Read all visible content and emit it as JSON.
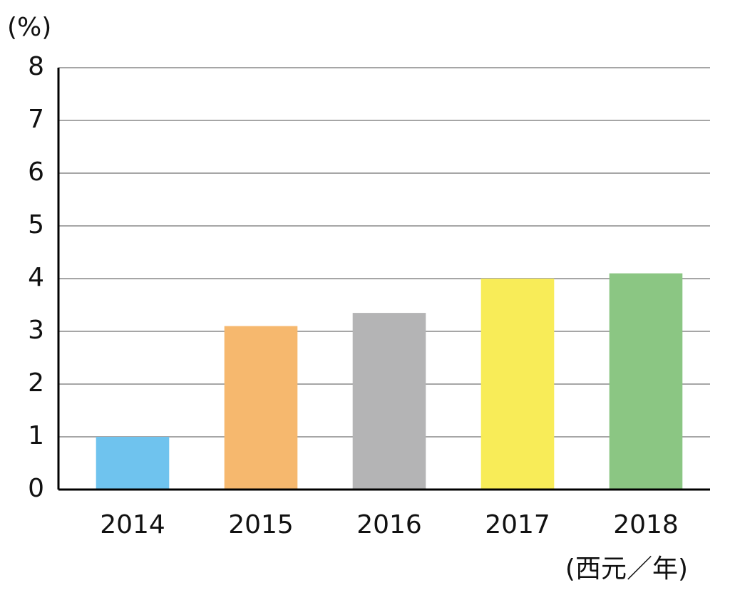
{
  "chart_data": {
    "type": "bar",
    "y_label": "(%)",
    "x_label": "(西元／年)",
    "categories": [
      "2014",
      "2015",
      "2016",
      "2017",
      "2018"
    ],
    "values": [
      1.0,
      3.1,
      3.35,
      4.0,
      4.1
    ],
    "colors": [
      "#6fc3ee",
      "#f6b86e",
      "#b4b4b5",
      "#f8ec58",
      "#8bc683"
    ],
    "ylim": [
      0,
      8
    ],
    "yticks": [
      0,
      1,
      2,
      3,
      4,
      5,
      6,
      7,
      8
    ],
    "grid": true
  }
}
